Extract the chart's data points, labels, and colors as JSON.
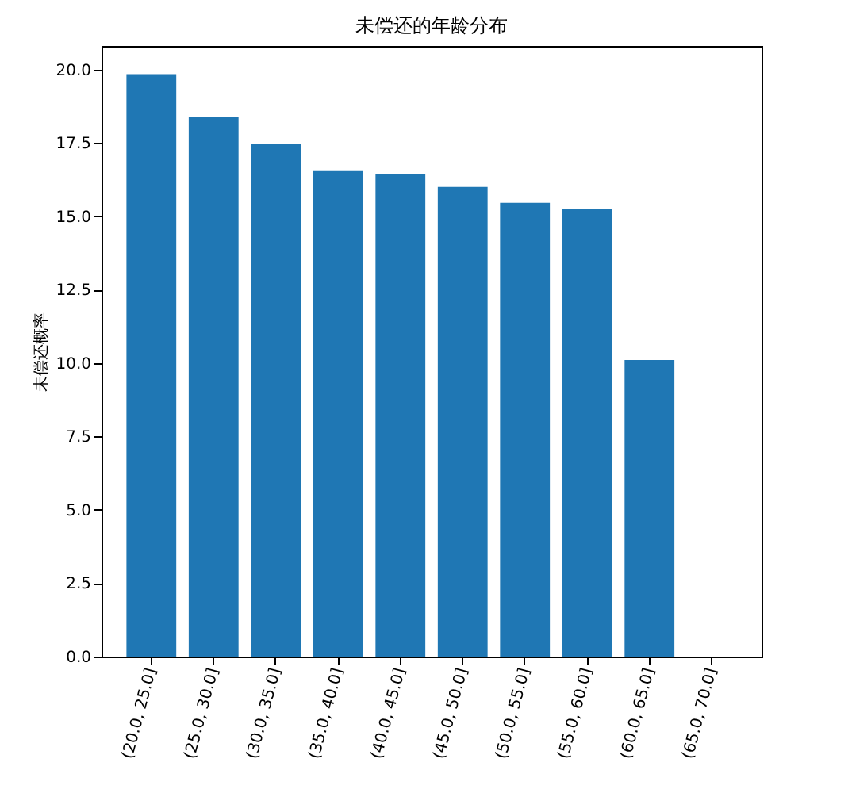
{
  "chart_data": {
    "type": "bar",
    "title": "未偿还的年龄分布",
    "ylabel": "未偿还概率",
    "categories": [
      "(20.0, 25.0]",
      "(25.0, 30.0]",
      "(30.0, 35.0]",
      "(35.0, 40.0]",
      "(40.0, 45.0]",
      "(45.0, 50.0]",
      "(50.0, 55.0]",
      "(55.0, 60.0]",
      "(60.0, 65.0]",
      "(65.0, 70.0]"
    ],
    "values": [
      19.84,
      18.38,
      17.46,
      16.54,
      16.43,
      16.0,
      15.46,
      15.24,
      10.1,
      0
    ],
    "color": "#1f77b4",
    "ylim": [
      0,
      20.8
    ],
    "yticks": [
      {
        "value": 0,
        "label": "0.0"
      },
      {
        "value": 2.5,
        "label": "2.5"
      },
      {
        "value": 5,
        "label": "5.0"
      },
      {
        "value": 7.5,
        "label": "7.5"
      },
      {
        "value": 10,
        "label": "10.0"
      },
      {
        "value": 12.5,
        "label": "12.5"
      },
      {
        "value": 15,
        "label": "15.0"
      },
      {
        "value": 17.5,
        "label": "17.5"
      },
      {
        "value": 20,
        "label": "20.0"
      }
    ],
    "grid": false,
    "legend": false
  }
}
